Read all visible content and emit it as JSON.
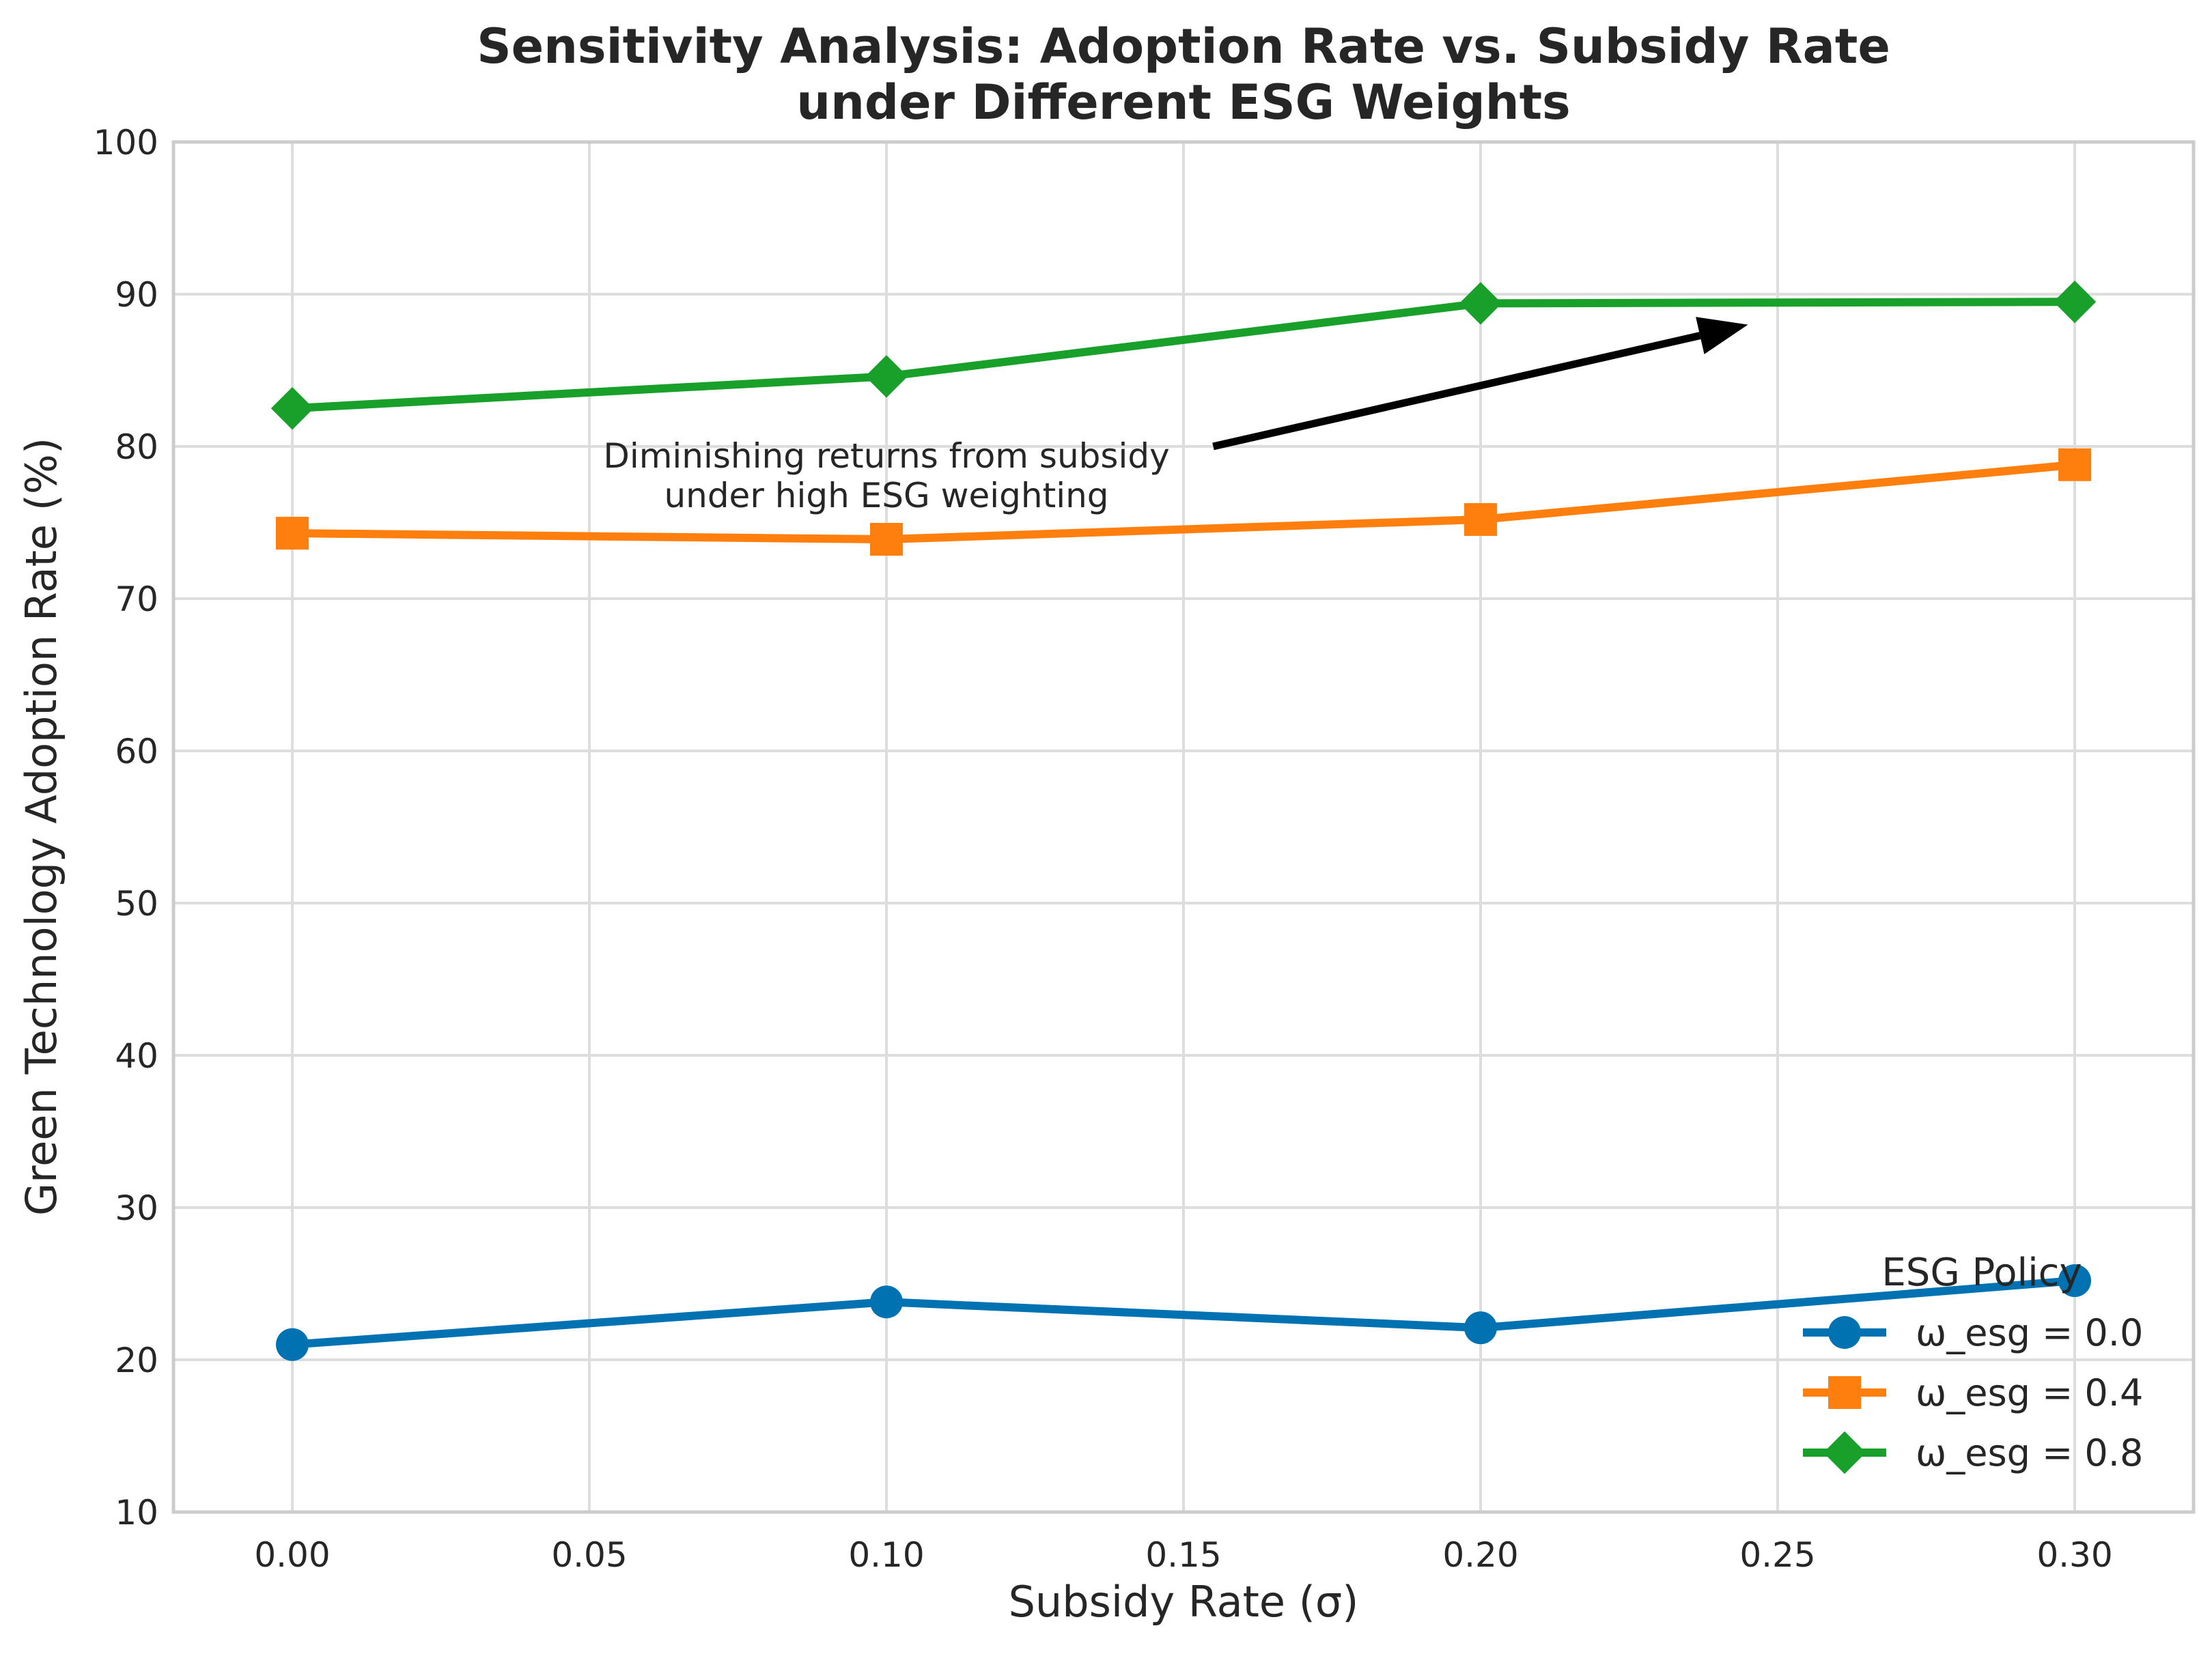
{
  "chart_data": {
    "type": "line",
    "title": "Sensitivity Analysis: Adoption Rate vs. Subsidy Rate",
    "subtitle": "under Different ESG Weights",
    "xlabel": "Subsidy Rate (σ)",
    "ylabel": "Green Technology Adoption Rate (%)",
    "xlim": [
      -0.02,
      0.32
    ],
    "ylim": [
      10,
      100
    ],
    "xticks": [
      0.0,
      0.05,
      0.1,
      0.15,
      0.2,
      0.25,
      0.3
    ],
    "xtick_labels": [
      "0.00",
      "0.05",
      "0.10",
      "0.15",
      "0.20",
      "0.25",
      "0.30"
    ],
    "yticks": [
      10,
      20,
      30,
      40,
      50,
      60,
      70,
      80,
      90,
      100
    ],
    "ytick_labels": [
      "10",
      "20",
      "30",
      "40",
      "50",
      "60",
      "70",
      "80",
      "90",
      "100"
    ],
    "grid": true,
    "x": [
      0.0,
      0.1,
      0.2,
      0.3
    ],
    "series": [
      {
        "name": "ω_esg = 0.0",
        "values": [
          21.0,
          23.8,
          22.1,
          25.2
        ],
        "color": "#0072B2",
        "marker": "circle"
      },
      {
        "name": "ω_esg = 0.4",
        "values": [
          74.3,
          73.9,
          75.2,
          78.8
        ],
        "color": "#FF7F0E",
        "marker": "square"
      },
      {
        "name": "ω_esg = 0.8",
        "values": [
          82.5,
          84.6,
          89.4,
          89.5
        ],
        "color": "#18A02A",
        "marker": "diamond"
      }
    ],
    "legend": {
      "title": "ESG Policy",
      "position": "lower-right"
    },
    "annotation": {
      "lines": [
        "Diminishing returns from subsidy",
        "under high ESG weighting"
      ],
      "text_at": [
        0.1,
        76.0
      ],
      "arrow_from": [
        0.155,
        80.0
      ],
      "arrow_to": [
        0.245,
        88.0
      ]
    }
  }
}
